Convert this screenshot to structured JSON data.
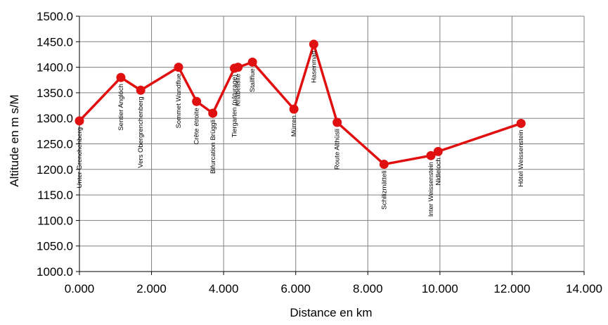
{
  "chart_data": {
    "type": "line",
    "title": "",
    "xlabel": "Distance en km",
    "ylabel": "Altitude en m s/M",
    "xlim": [
      0,
      14
    ],
    "ylim": [
      1000,
      1500
    ],
    "x_ticks": [
      0,
      2,
      4,
      6,
      8,
      10,
      12,
      14
    ],
    "x_tick_labels": [
      "0.000",
      "2.000",
      "4.000",
      "6.000",
      "8.000",
      "10.000",
      "12.000",
      "14.000"
    ],
    "y_ticks": [
      1000,
      1050,
      1100,
      1150,
      1200,
      1250,
      1300,
      1350,
      1400,
      1450,
      1500
    ],
    "y_tick_labels": [
      "1000.0",
      "1050.0",
      "1100.0",
      "1150.0",
      "1200.0",
      "1250.0",
      "1300.0",
      "1350.0",
      "1400.0",
      "1450.0",
      "1500.0"
    ],
    "grid": true,
    "legend": "none",
    "colors": {
      "series": "#e01010",
      "grid": "#808080",
      "axis": "#000000"
    },
    "series": [
      {
        "points": [
          {
            "x": 0.0,
            "y": 1295,
            "label": "Unter Grenchenberg"
          },
          {
            "x": 1.15,
            "y": 1380,
            "label": "Sentier Anglóch"
          },
          {
            "x": 1.7,
            "y": 1355,
            "label": "Vers Obergrenchenberg"
          },
          {
            "x": 2.75,
            "y": 1400,
            "label": "Sommet Wandflue"
          },
          {
            "x": 3.25,
            "y": 1333,
            "label": "Crête étroite"
          },
          {
            "x": 3.7,
            "y": 1310,
            "label": "Bifurcation Brüggli"
          },
          {
            "x": 4.3,
            "y": 1398,
            "label": "Tiergarten (pâturage)"
          },
          {
            "x": 4.4,
            "y": 1400,
            "label": "Knäbelisite"
          },
          {
            "x": 4.8,
            "y": 1410,
            "label": "Stallflue"
          },
          {
            "x": 5.95,
            "y": 1318,
            "label": "Mürren"
          },
          {
            "x": 6.5,
            "y": 1445,
            "label": "Hasenmatt"
          },
          {
            "x": 7.15,
            "y": 1292,
            "label": "Route Althüsli"
          },
          {
            "x": 8.45,
            "y": 1210,
            "label": "Schilizmätteli"
          },
          {
            "x": 9.75,
            "y": 1227,
            "label": "Inter Weissenstein"
          },
          {
            "x": 9.95,
            "y": 1235,
            "label": "Nidleloch"
          },
          {
            "x": 12.25,
            "y": 1290,
            "label": "Hôtel Weissenstein"
          }
        ]
      }
    ]
  }
}
